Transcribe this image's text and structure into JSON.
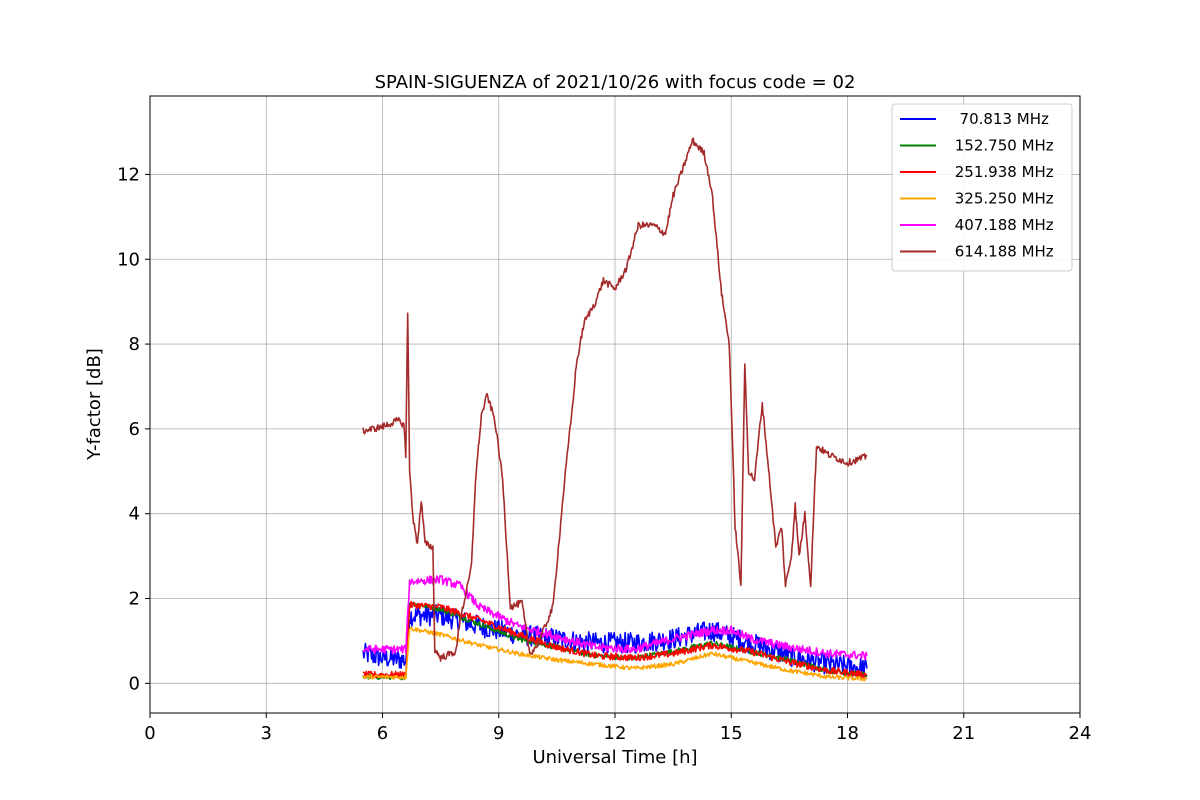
{
  "chart_data": {
    "type": "line",
    "title": "SPAIN-SIGUENZA of 2021/10/26 with focus code = 02",
    "xlabel": "Universal Time [h]",
    "ylabel": "Y-factor [dB]",
    "xlim": [
      0,
      24
    ],
    "ylim": [
      -0.7,
      13.85
    ],
    "xticks": [
      0,
      3,
      6,
      9,
      12,
      15,
      18,
      21,
      24
    ],
    "yticks": [
      0,
      2,
      4,
      6,
      8,
      10,
      12
    ],
    "grid": true,
    "legend_position": "top-right",
    "series": [
      {
        "name": "  70.813 MHz",
        "color": "#0000ff",
        "noise": 0.25,
        "points": [
          [
            5.5,
            0.7
          ],
          [
            6.0,
            0.6
          ],
          [
            6.6,
            0.55
          ],
          [
            6.7,
            1.6
          ],
          [
            7.5,
            1.6
          ],
          [
            8.5,
            1.35
          ],
          [
            9.5,
            1.15
          ],
          [
            10.5,
            1.05
          ],
          [
            11.5,
            0.95
          ],
          [
            12.5,
            0.95
          ],
          [
            13.5,
            1.05
          ],
          [
            14.5,
            1.25
          ],
          [
            15.5,
            0.95
          ],
          [
            16.5,
            0.65
          ],
          [
            17.5,
            0.45
          ],
          [
            18.5,
            0.35
          ]
        ]
      },
      {
        "name": " 152.750 MHz",
        "color": "#008000",
        "noise": 0.06,
        "points": [
          [
            5.5,
            0.15
          ],
          [
            6.6,
            0.15
          ],
          [
            6.7,
            1.9
          ],
          [
            7.5,
            1.75
          ],
          [
            8.5,
            1.4
          ],
          [
            9.5,
            1.05
          ],
          [
            10.5,
            0.85
          ],
          [
            11.5,
            0.65
          ],
          [
            12.5,
            0.6
          ],
          [
            13.5,
            0.75
          ],
          [
            14.5,
            0.95
          ],
          [
            15.5,
            0.75
          ],
          [
            16.5,
            0.55
          ],
          [
            17.5,
            0.3
          ],
          [
            18.5,
            0.2
          ]
        ]
      },
      {
        "name": " 251.938 MHz",
        "color": "#ff0000",
        "noise": 0.08,
        "points": [
          [
            5.5,
            0.2
          ],
          [
            6.6,
            0.2
          ],
          [
            6.7,
            1.85
          ],
          [
            7.5,
            1.8
          ],
          [
            8.5,
            1.5
          ],
          [
            9.5,
            1.15
          ],
          [
            10.5,
            0.85
          ],
          [
            11.5,
            0.65
          ],
          [
            12.5,
            0.6
          ],
          [
            13.5,
            0.7
          ],
          [
            14.5,
            0.9
          ],
          [
            15.5,
            0.75
          ],
          [
            16.5,
            0.5
          ],
          [
            17.5,
            0.3
          ],
          [
            18.5,
            0.2
          ]
        ]
      },
      {
        "name": " 325.250 MHz",
        "color": "#ffa500",
        "noise": 0.05,
        "points": [
          [
            5.5,
            0.15
          ],
          [
            6.6,
            0.15
          ],
          [
            6.7,
            1.3
          ],
          [
            7.5,
            1.15
          ],
          [
            8.5,
            0.9
          ],
          [
            9.5,
            0.7
          ],
          [
            10.5,
            0.55
          ],
          [
            11.5,
            0.45
          ],
          [
            12.5,
            0.35
          ],
          [
            13.5,
            0.45
          ],
          [
            14.5,
            0.7
          ],
          [
            15.5,
            0.5
          ],
          [
            16.5,
            0.3
          ],
          [
            17.5,
            0.15
          ],
          [
            18.5,
            0.1
          ]
        ]
      },
      {
        "name": " 407.188 MHz",
        "color": "#ff00ff",
        "noise": 0.1,
        "points": [
          [
            5.5,
            0.8
          ],
          [
            6.6,
            0.8
          ],
          [
            6.7,
            2.4
          ],
          [
            7.5,
            2.45
          ],
          [
            8.0,
            2.3
          ],
          [
            8.5,
            1.8
          ],
          [
            9.5,
            1.35
          ],
          [
            10.5,
            1.1
          ],
          [
            11.5,
            0.85
          ],
          [
            12.5,
            0.8
          ],
          [
            13.5,
            1.05
          ],
          [
            14.5,
            1.25
          ],
          [
            15.0,
            1.25
          ],
          [
            15.5,
            1.05
          ],
          [
            16.5,
            0.85
          ],
          [
            17.5,
            0.7
          ],
          [
            18.5,
            0.65
          ]
        ]
      },
      {
        "name": " 614.188 MHz",
        "color": "#a52a2a",
        "noise": 0.08,
        "points": [
          [
            5.5,
            5.95
          ],
          [
            6.0,
            6.05
          ],
          [
            6.4,
            6.2
          ],
          [
            6.55,
            6.1
          ],
          [
            6.6,
            5.4
          ],
          [
            6.65,
            8.7
          ],
          [
            6.7,
            5.0
          ],
          [
            6.8,
            3.8
          ],
          [
            6.9,
            3.3
          ],
          [
            7.0,
            4.3
          ],
          [
            7.1,
            3.3
          ],
          [
            7.3,
            3.2
          ],
          [
            7.35,
            0.8
          ],
          [
            7.5,
            0.6
          ],
          [
            7.9,
            0.75
          ],
          [
            8.0,
            1.5
          ],
          [
            8.2,
            2.3
          ],
          [
            8.3,
            2.8
          ],
          [
            8.4,
            4.8
          ],
          [
            8.55,
            6.3
          ],
          [
            8.7,
            6.8
          ],
          [
            8.9,
            6.2
          ],
          [
            9.1,
            4.8
          ],
          [
            9.3,
            1.8
          ],
          [
            9.6,
            1.9
          ],
          [
            9.8,
            0.7
          ],
          [
            10.0,
            0.9
          ],
          [
            10.4,
            1.8
          ],
          [
            10.7,
            4.8
          ],
          [
            10.9,
            6.5
          ],
          [
            11.0,
            7.5
          ],
          [
            11.2,
            8.5
          ],
          [
            11.5,
            9.0
          ],
          [
            11.7,
            9.5
          ],
          [
            12.0,
            9.3
          ],
          [
            12.3,
            9.8
          ],
          [
            12.6,
            10.8
          ],
          [
            13.0,
            10.8
          ],
          [
            13.3,
            10.6
          ],
          [
            13.5,
            11.5
          ],
          [
            13.7,
            12.0
          ],
          [
            14.0,
            12.8
          ],
          [
            14.3,
            12.5
          ],
          [
            14.5,
            11.6
          ],
          [
            14.75,
            9.2
          ],
          [
            14.95,
            8.0
          ],
          [
            15.1,
            3.7
          ],
          [
            15.25,
            2.3
          ],
          [
            15.35,
            7.5
          ],
          [
            15.45,
            5.0
          ],
          [
            15.6,
            4.8
          ],
          [
            15.8,
            6.6
          ],
          [
            16.0,
            4.7
          ],
          [
            16.15,
            3.2
          ],
          [
            16.3,
            3.7
          ],
          [
            16.4,
            2.3
          ],
          [
            16.55,
            3.0
          ],
          [
            16.65,
            4.2
          ],
          [
            16.75,
            3.0
          ],
          [
            16.9,
            4.0
          ],
          [
            17.05,
            2.3
          ],
          [
            17.2,
            5.6
          ],
          [
            17.5,
            5.4
          ],
          [
            18.0,
            5.2
          ],
          [
            18.5,
            5.35
          ]
        ]
      }
    ]
  }
}
